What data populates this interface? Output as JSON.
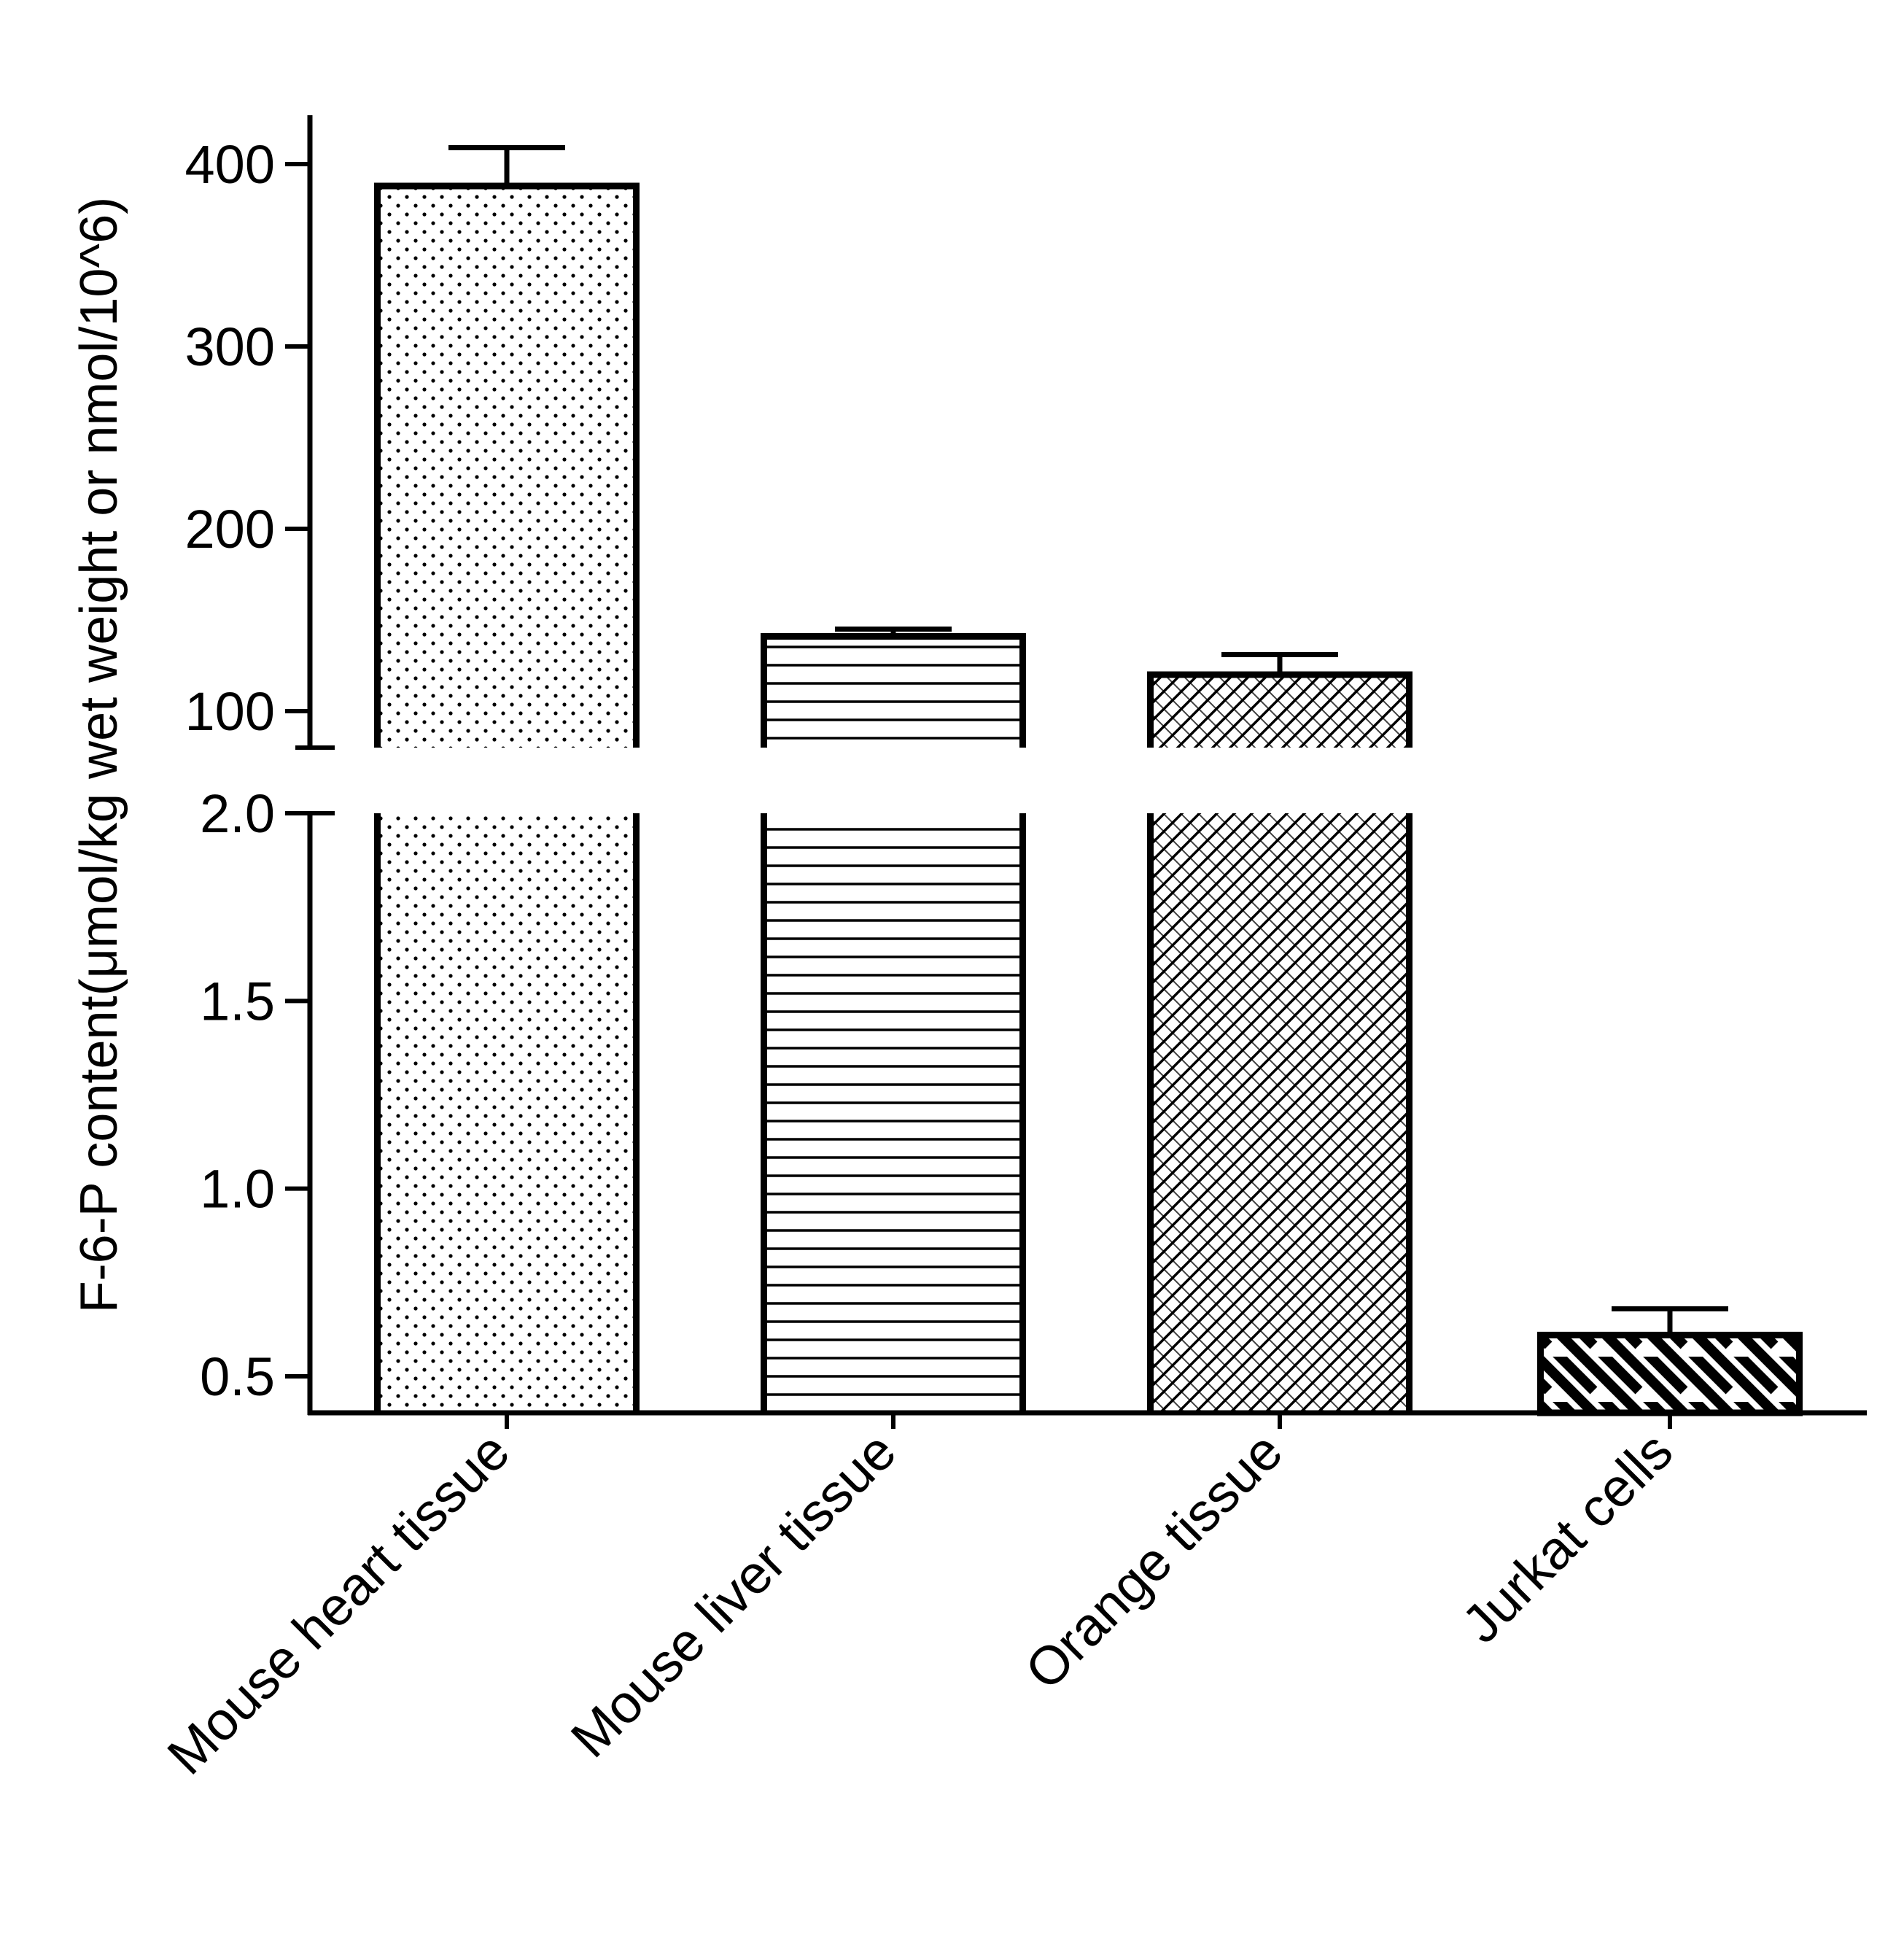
{
  "chart_data": {
    "type": "bar",
    "title": "",
    "xlabel": "",
    "ylabel": "F-6-P content(μmol/kg wet weight or nmol/10^6)",
    "categories": [
      "Mouse heart tissue",
      "Mouse liver tissue",
      "Orange tissue",
      "Jurkat cells"
    ],
    "values": [
      388,
      141,
      120,
      0.61
    ],
    "errors": [
      21,
      4,
      11,
      0.07
    ],
    "patterns": [
      "dots",
      "horizontal-lines",
      "crosshatch",
      "diagonal-stripes"
    ],
    "broken_axis": true,
    "segments": [
      {
        "name": "upper",
        "ylim": [
          80,
          425
        ],
        "ticks": [
          100,
          200,
          300,
          400
        ],
        "tick_labels": [
          "100",
          "200",
          "300",
          "400"
        ]
      },
      {
        "name": "lower",
        "ylim": [
          0.4,
          2.0
        ],
        "ticks": [
          0.5,
          1.0,
          1.5,
          2.0
        ],
        "tick_labels": [
          "0.5",
          "1.0",
          "1.5",
          "2.0"
        ]
      }
    ],
    "grid": false,
    "legend": "none",
    "colors": {
      "stroke": "#000000",
      "fill": "#ffffff"
    }
  }
}
